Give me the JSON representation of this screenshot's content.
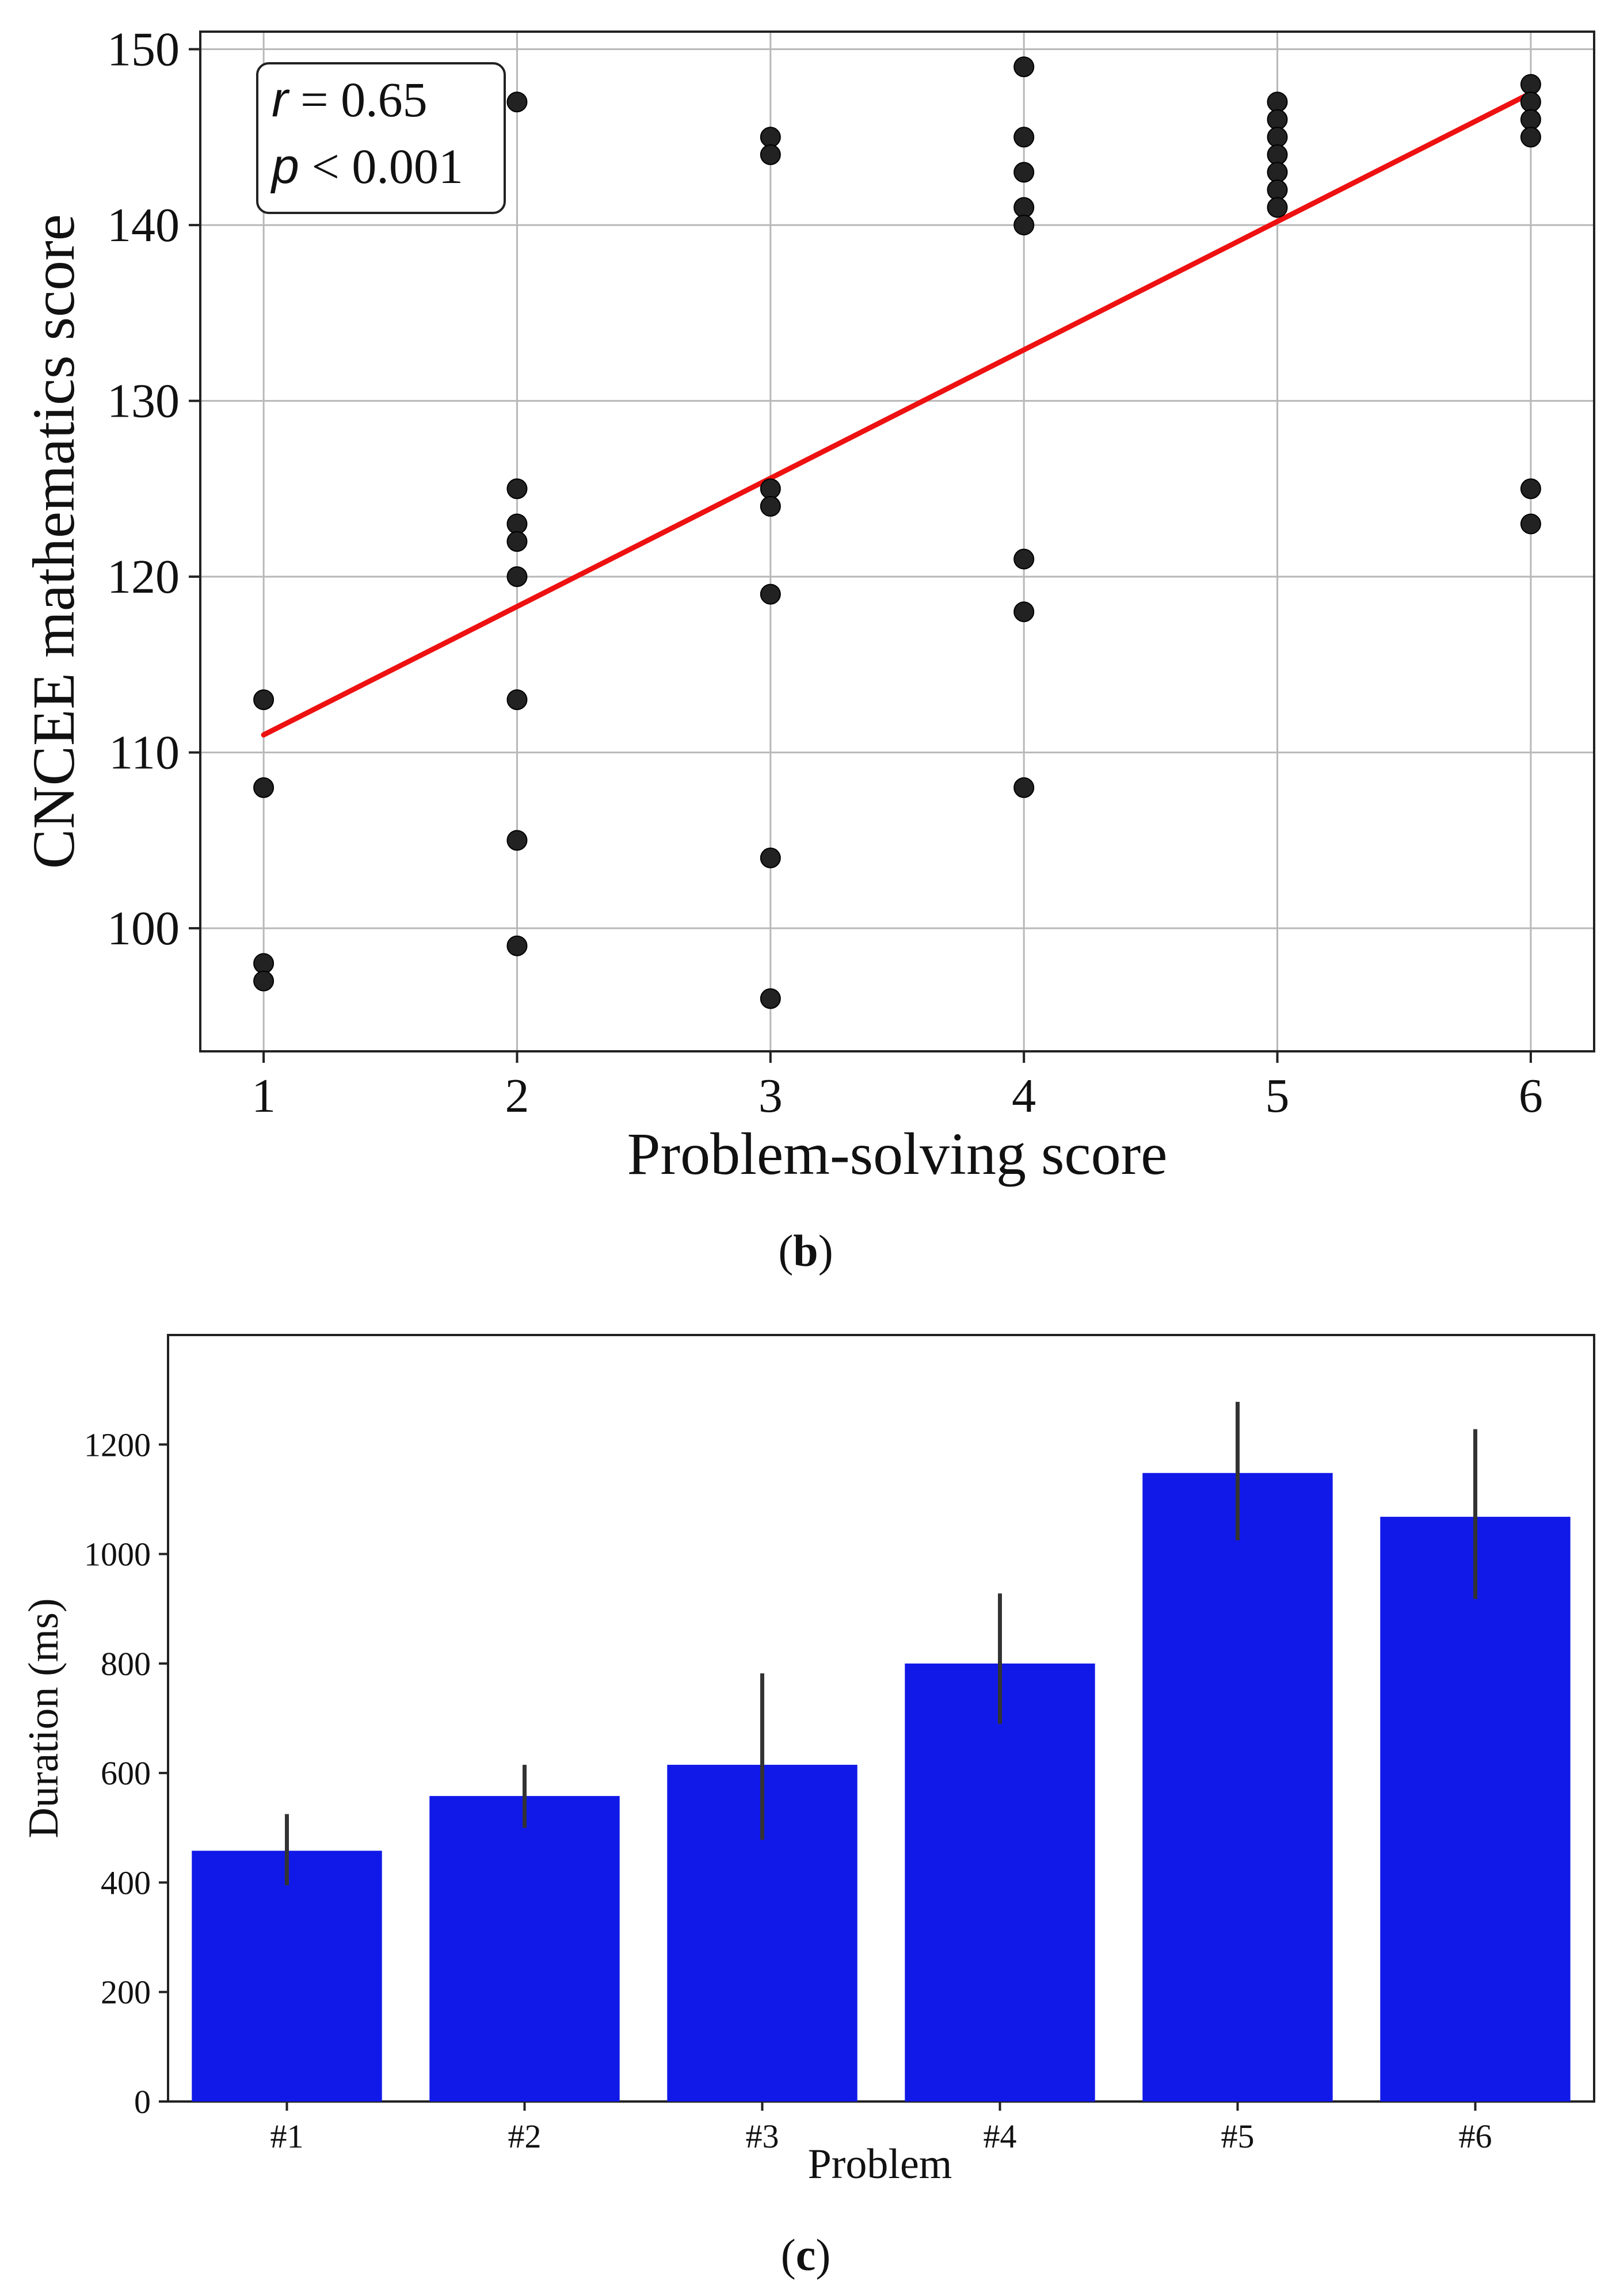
{
  "chart_data": [
    {
      "type": "scatter",
      "panel_label": "b",
      "xlabel": "Problem-solving score",
      "ylabel": "CNCEE mathematics score",
      "xlim": [
        0.75,
        6.25
      ],
      "ylim": [
        93,
        151
      ],
      "xticks": [
        1,
        2,
        3,
        4,
        5,
        6
      ],
      "yticks": [
        100,
        110,
        120,
        130,
        140,
        150
      ],
      "grid": true,
      "annotation": {
        "r_symbol": "r",
        "r_text": " = 0.65",
        "p_symbol": "p",
        "p_text": " < 0.001",
        "placement": "top-left"
      },
      "regression_line": {
        "x": [
          1,
          6
        ],
        "y": [
          111,
          147.5
        ],
        "color": "#ee1111"
      },
      "point_color": "#222222",
      "points": [
        {
          "x": 1,
          "y": 113
        },
        {
          "x": 1,
          "y": 108
        },
        {
          "x": 1,
          "y": 98
        },
        {
          "x": 1,
          "y": 97
        },
        {
          "x": 2,
          "y": 147
        },
        {
          "x": 2,
          "y": 125
        },
        {
          "x": 2,
          "y": 123
        },
        {
          "x": 2,
          "y": 122
        },
        {
          "x": 2,
          "y": 120
        },
        {
          "x": 2,
          "y": 113
        },
        {
          "x": 2,
          "y": 105
        },
        {
          "x": 2,
          "y": 99
        },
        {
          "x": 3,
          "y": 145
        },
        {
          "x": 3,
          "y": 144
        },
        {
          "x": 3,
          "y": 125
        },
        {
          "x": 3,
          "y": 124
        },
        {
          "x": 3,
          "y": 119
        },
        {
          "x": 3,
          "y": 104
        },
        {
          "x": 3,
          "y": 96
        },
        {
          "x": 4,
          "y": 149
        },
        {
          "x": 4,
          "y": 145
        },
        {
          "x": 4,
          "y": 143
        },
        {
          "x": 4,
          "y": 141
        },
        {
          "x": 4,
          "y": 140
        },
        {
          "x": 4,
          "y": 121
        },
        {
          "x": 4,
          "y": 118
        },
        {
          "x": 4,
          "y": 108
        },
        {
          "x": 5,
          "y": 147
        },
        {
          "x": 5,
          "y": 146
        },
        {
          "x": 5,
          "y": 145
        },
        {
          "x": 5,
          "y": 144
        },
        {
          "x": 5,
          "y": 143
        },
        {
          "x": 5,
          "y": 142
        },
        {
          "x": 5,
          "y": 141
        },
        {
          "x": 6,
          "y": 148
        },
        {
          "x": 6,
          "y": 147
        },
        {
          "x": 6,
          "y": 146
        },
        {
          "x": 6,
          "y": 145
        },
        {
          "x": 6,
          "y": 125
        },
        {
          "x": 6,
          "y": 123
        }
      ]
    },
    {
      "type": "bar",
      "panel_label": "c",
      "xlabel": "Problem",
      "ylabel": "Duration (ms)",
      "categories": [
        "#1",
        "#2",
        "#3",
        "#4",
        "#5",
        "#6"
      ],
      "values": [
        458,
        558,
        615,
        800,
        1148,
        1068
      ],
      "error_low": [
        395,
        500,
        478,
        690,
        1025,
        918
      ],
      "error_high": [
        525,
        615,
        782,
        928,
        1278,
        1228
      ],
      "ylim": [
        0,
        1400
      ],
      "yticks": [
        0,
        200,
        400,
        600,
        800,
        1000,
        1200
      ],
      "grid": false,
      "bar_color": "#1119e8",
      "error_color": "#333333"
    }
  ]
}
